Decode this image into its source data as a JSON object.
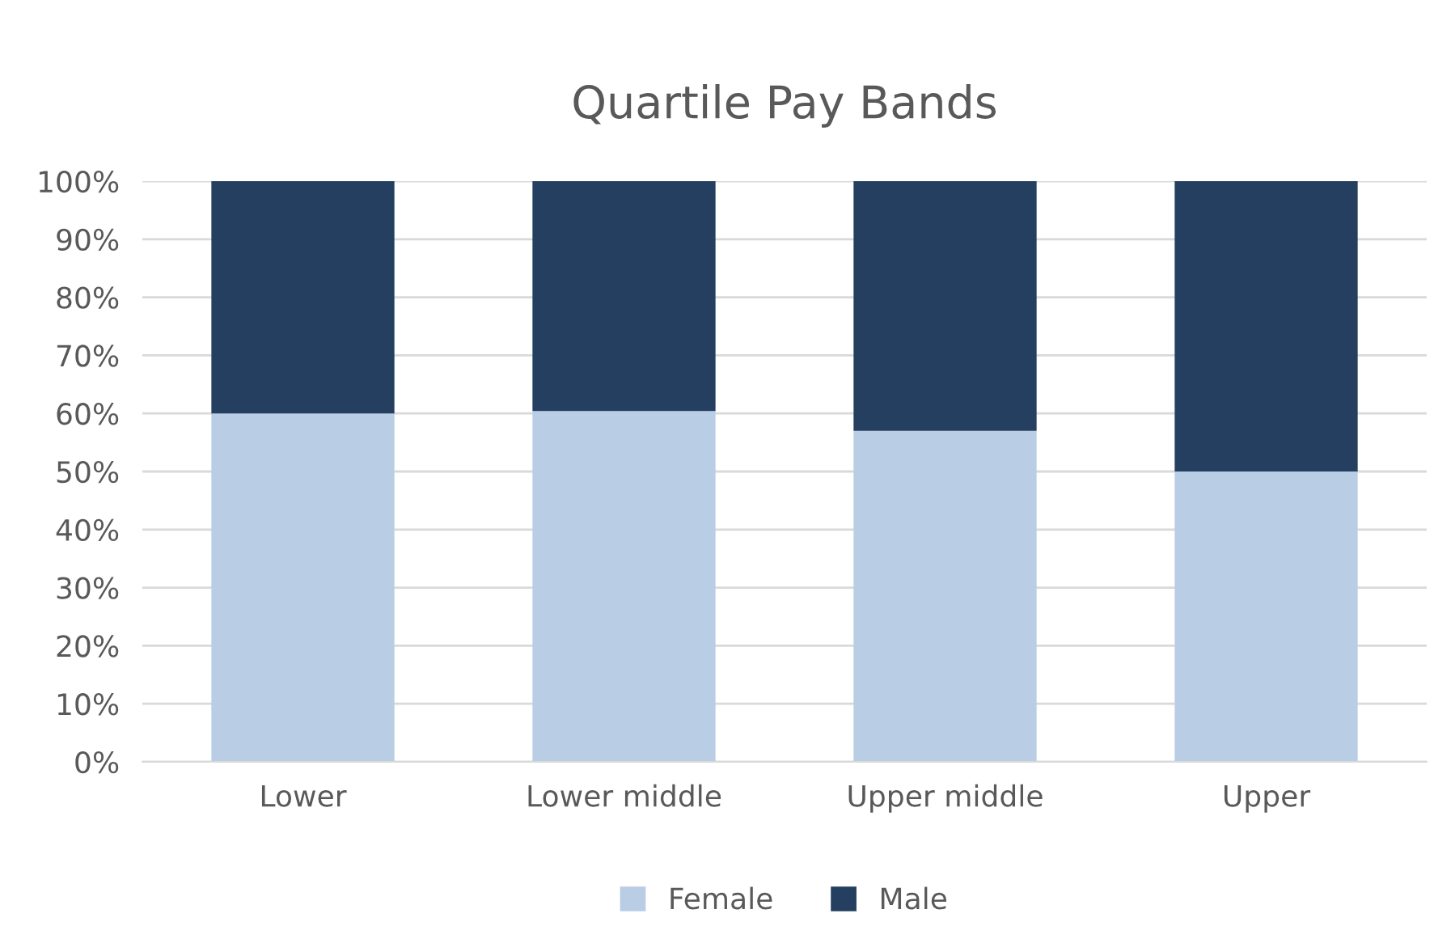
{
  "chart_data": {
    "type": "bar",
    "stacked": true,
    "title": "Quartile Pay Bands",
    "categories": [
      "Lower",
      "Lower middle",
      "Upper middle",
      "Upper"
    ],
    "series": [
      {
        "name": "Female",
        "color": "#b9cde5",
        "values": [
          60,
          60.4,
          57,
          50
        ]
      },
      {
        "name": "Male",
        "color": "#243f60",
        "values": [
          40,
          39.6,
          43,
          50
        ]
      }
    ],
    "ylim": [
      0,
      100
    ],
    "yticks": [
      {
        "value": 0,
        "label": "0%"
      },
      {
        "value": 10,
        "label": "10%"
      },
      {
        "value": 20,
        "label": "20%"
      },
      {
        "value": 30,
        "label": "30%"
      },
      {
        "value": 40,
        "label": "40%"
      },
      {
        "value": 50,
        "label": "50%"
      },
      {
        "value": 60,
        "label": "60%"
      },
      {
        "value": 70,
        "label": "70%"
      },
      {
        "value": 80,
        "label": "80%"
      },
      {
        "value": 90,
        "label": "90%"
      },
      {
        "value": 100,
        "label": "100%"
      }
    ],
    "grid": "y",
    "legend": "bottom"
  }
}
